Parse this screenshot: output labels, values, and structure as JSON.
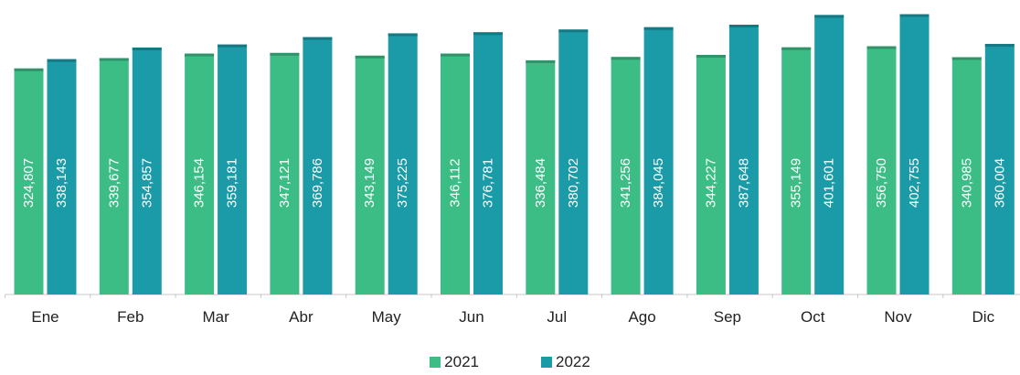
{
  "chart_data": {
    "type": "bar",
    "categories": [
      "Ene",
      "Feb",
      "Mar",
      "Abr",
      "May",
      "Jun",
      "Jul",
      "Ago",
      "Sep",
      "Oct",
      "Nov",
      "Dic"
    ],
    "series": [
      {
        "name": "2021",
        "color": "#3dbd86",
        "values": [
          324807,
          339677,
          346154,
          347121,
          343149,
          346112,
          336484,
          341256,
          344227,
          355149,
          356750,
          340985
        ],
        "labels": [
          "324,807",
          "339,677",
          "346,154",
          "347,121",
          "343,149",
          "346,112",
          "336,484",
          "341,256",
          "344,227",
          "355,149",
          "356,750",
          "340,985"
        ]
      },
      {
        "name": "2022",
        "color": "#1b9aa8",
        "values": [
          338143,
          354857,
          359181,
          369786,
          375225,
          376781,
          380702,
          384045,
          387648,
          401601,
          402755,
          360004
        ],
        "labels": [
          "338,143",
          "354,857",
          "359,181",
          "369,786",
          "375,225",
          "376,781",
          "380,702",
          "384,045",
          "387,648",
          "401,601",
          "402,755",
          "360,004"
        ]
      }
    ],
    "ylim": [
      0,
      410000
    ],
    "grid": false,
    "legend": "bottom-center"
  }
}
